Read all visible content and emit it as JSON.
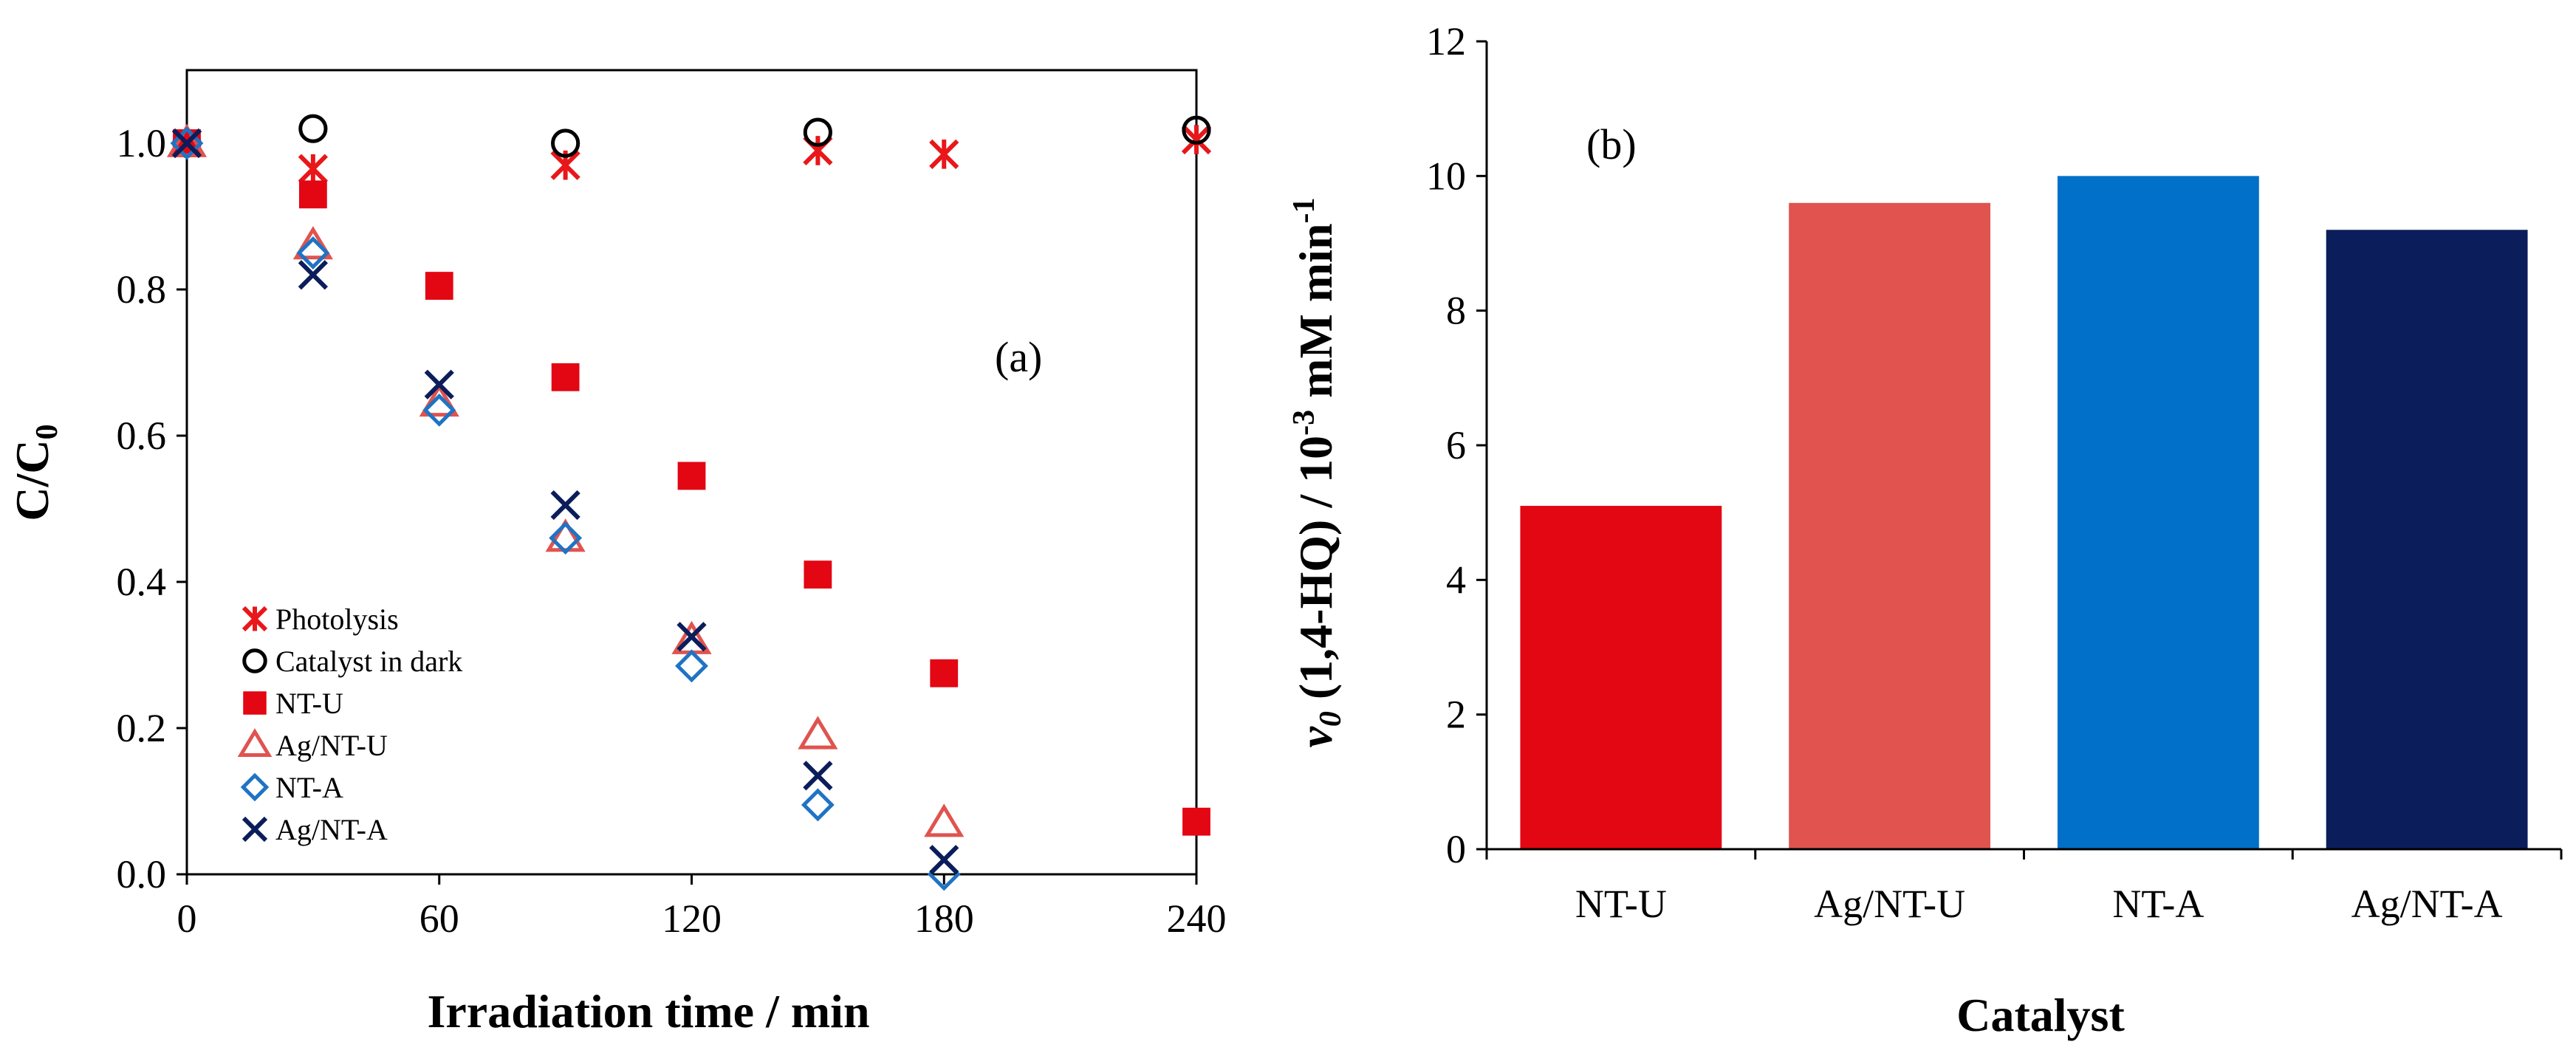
{
  "chart_data": [
    {
      "type": "scatter",
      "panel_label": "(a)",
      "xlabel": "Irradiation time / min",
      "ylabel_main": "C/C",
      "ylabel_sub": "0",
      "xlim": [
        0,
        240
      ],
      "ylim": [
        0,
        1.1
      ],
      "xticks": [
        "0",
        "60",
        "120",
        "180",
        "240"
      ],
      "yticks": [
        "0.0",
        "0.2",
        "0.4",
        "0.6",
        "0.8",
        "1.0"
      ],
      "legend_position": "bottom-left",
      "series": [
        {
          "name": "Photolysis",
          "marker": "asterisk",
          "color": "#e8171a",
          "points": [
            [
              0,
              1.0
            ],
            [
              30,
              0.965
            ],
            [
              90,
              0.97
            ],
            [
              150,
              0.99
            ],
            [
              180,
              0.985
            ],
            [
              240,
              1.005
            ]
          ]
        },
        {
          "name": "Catalyst in dark",
          "marker": "circle",
          "color": "#000000",
          "points": [
            [
              0,
              1.0
            ],
            [
              30,
              1.02
            ],
            [
              90,
              1.0
            ],
            [
              150,
              1.015
            ],
            [
              240,
              1.018
            ]
          ]
        },
        {
          "name": "NT-U",
          "marker": "square",
          "color": "#e30613",
          "points": [
            [
              0,
              1.0
            ],
            [
              30,
              0.93
            ],
            [
              60,
              0.805
            ],
            [
              90,
              0.68
            ],
            [
              120,
              0.545
            ],
            [
              150,
              0.41
            ],
            [
              180,
              0.275
            ],
            [
              240,
              0.072
            ]
          ]
        },
        {
          "name": "Ag/NT-U",
          "marker": "triangle",
          "color": "#e0534f",
          "points": [
            [
              0,
              1.0
            ],
            [
              30,
              0.86
            ],
            [
              60,
              0.645
            ],
            [
              90,
              0.46
            ],
            [
              120,
              0.32
            ],
            [
              150,
              0.19
            ],
            [
              180,
              0.07
            ]
          ]
        },
        {
          "name": "NT-A",
          "marker": "diamond",
          "color": "#1f73c4",
          "points": [
            [
              0,
              1.0
            ],
            [
              30,
              0.85
            ],
            [
              60,
              0.635
            ],
            [
              90,
              0.46
            ],
            [
              120,
              0.285
            ],
            [
              150,
              0.095
            ],
            [
              180,
              0.0
            ]
          ]
        },
        {
          "name": "Ag/NT-A",
          "marker": "x",
          "color": "#0b1d5a",
          "points": [
            [
              0,
              1.0
            ],
            [
              30,
              0.82
            ],
            [
              60,
              0.67
            ],
            [
              90,
              0.505
            ],
            [
              120,
              0.325
            ],
            [
              150,
              0.135
            ],
            [
              180,
              0.02
            ]
          ]
        }
      ]
    },
    {
      "type": "bar",
      "panel_label": "(b)",
      "xlabel": "Catalyst",
      "ylabel": {
        "v": "v",
        "v_sub": "0",
        "mid": " (1,4-HQ) / 10",
        "exp1": "-3",
        "unit": " mM min",
        "exp2": "-1"
      },
      "ylim": [
        0,
        12
      ],
      "yticks": [
        "0",
        "2",
        "4",
        "6",
        "8",
        "10",
        "12"
      ],
      "categories": [
        "NT-U",
        "Ag/NT-U",
        "NT-A",
        "Ag/NT-A"
      ],
      "values": [
        5.1,
        9.6,
        10.0,
        9.2
      ],
      "colors": [
        "#e30613",
        "#e0534f",
        "#0070c8",
        "#0b1d5a"
      ]
    }
  ]
}
